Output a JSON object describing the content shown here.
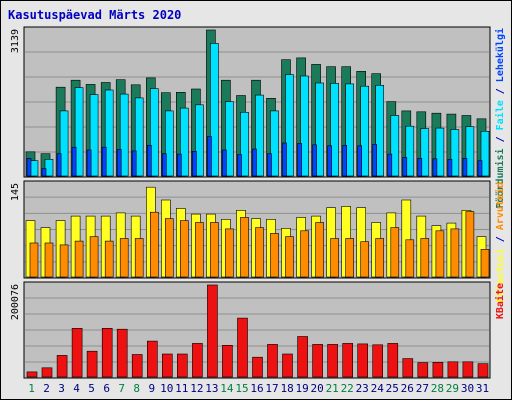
{
  "colors": {
    "background": "#ffffff",
    "frame": "#e6e6e6",
    "plot_bg": "#c0c0c0",
    "title_color": "#0000c0",
    "gridline": "#8f8f8f",
    "day_weekday": "#000080",
    "day_weekend": "#008040",
    "hits": "#1b7a5a",
    "files": "#00e0ff",
    "pages": "#0044ff",
    "visits": "#ffff22",
    "sites": "#ff8c00",
    "kbytes": "#ee1111"
  },
  "chart_data": {
    "type": "bar",
    "title": "Kasutuspäevad Märts 2020",
    "categories": [
      "1",
      "2",
      "3",
      "4",
      "5",
      "6",
      "7",
      "8",
      "9",
      "10",
      "11",
      "12",
      "13",
      "14",
      "15",
      "16",
      "17",
      "18",
      "19",
      "20",
      "21",
      "22",
      "23",
      "24",
      "25",
      "26",
      "27",
      "28",
      "29",
      "30",
      "31"
    ],
    "weekend_days": [
      "1",
      "7",
      "8",
      "14",
      "15",
      "21",
      "22",
      "28",
      "29"
    ],
    "panels": [
      {
        "name": "requests",
        "ymax": 3139,
        "ymax_label": "3139",
        "right_labels": [
          {
            "text": "Pöördumisi",
            "color_key": "hits"
          },
          {
            "text": " / ",
            "color_key": "title_color"
          },
          {
            "text": "Faile",
            "color_key": "files"
          },
          {
            "text": " / ",
            "color_key": "title_color"
          },
          {
            "text": "Lehekülgi",
            "color_key": "pages"
          }
        ],
        "series": [
          {
            "name": "Pöördumisi",
            "color_key": "hits",
            "values": [
              520,
              480,
              1910,
              2060,
              1970,
              2010,
              2070,
              1960,
              2110,
              1790,
              1800,
              1870,
              3139,
              2060,
              1730,
              2060,
              1670,
              2500,
              2540,
              2400,
              2350,
              2350,
              2250,
              2200,
              1600,
              1400,
              1380,
              1350,
              1330,
              1300,
              1230
            ]
          },
          {
            "name": "Faile",
            "color_key": "files",
            "values": [
              330,
              360,
              1400,
              1900,
              1750,
              1850,
              1760,
              1680,
              1880,
              1400,
              1460,
              1530,
              2850,
              1600,
              1370,
              1740,
              1400,
              2180,
              2150,
              2000,
              1990,
              1980,
              1930,
              1950,
              1300,
              1070,
              1020,
              1030,
              1000,
              1060,
              960
            ]
          },
          {
            "name": "Lehekülgi",
            "color_key": "pages",
            "values": [
              380,
              160,
              480,
              620,
              560,
              620,
              570,
              540,
              660,
              480,
              470,
              530,
              850,
              560,
              460,
              580,
              480,
              710,
              700,
              670,
              650,
              660,
              650,
              680,
              470,
              400,
              380,
              370,
              360,
              380,
              330
            ]
          }
        ]
      },
      {
        "name": "visits",
        "ymax": 145,
        "ymax_label": "145",
        "right_labels": [
          {
            "text": "Külastusi",
            "color_key": "visits"
          },
          {
            "text": " / ",
            "color_key": "title_color"
          },
          {
            "text": "Arvuteid",
            "color_key": "sites"
          }
        ],
        "series": [
          {
            "name": "Külastusi",
            "color_key": "visits",
            "values": [
              88,
              77,
              88,
              95,
              95,
              95,
              100,
              95,
              140,
              120,
              107,
              98,
              98,
              90,
              104,
              91,
              90,
              76,
              93,
              95,
              108,
              110,
              108,
              85,
              100,
              120,
              95,
              80,
              84,
              104,
              63
            ]
          },
          {
            "name": "Arvuteid",
            "color_key": "sites",
            "values": [
              53,
              53,
              50,
              56,
              63,
              56,
              60,
              60,
              101,
              91,
              88,
              85,
              85,
              75,
              93,
              77,
              68,
              63,
              72,
              85,
              60,
              60,
              55,
              60,
              77,
              58,
              60,
              72,
              75,
              102,
              43
            ]
          }
        ]
      },
      {
        "name": "bytes",
        "ymax": 200076,
        "ymax_label": "200076",
        "right_labels": [
          {
            "text": "KBaite",
            "color_key": "kbytes"
          }
        ],
        "series": [
          {
            "name": "KBaite",
            "color_key": "kbytes",
            "values": [
              11000,
              20000,
              47000,
              106000,
              56000,
              106000,
              104000,
              49000,
              78000,
              50000,
              50000,
              73000,
              200076,
              69000,
              128000,
              43000,
              71000,
              50000,
              88000,
              71000,
              71000,
              73000,
              72000,
              70000,
              73000,
              40000,
              31000,
              32000,
              33000,
              33000,
              29000
            ]
          }
        ]
      }
    ]
  }
}
